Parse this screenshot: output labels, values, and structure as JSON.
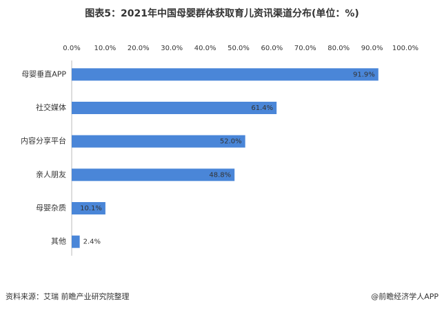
{
  "chart_data": {
    "type": "bar",
    "orientation": "horizontal",
    "title": "图表5：2021年中国母婴群体获取育儿资讯渠道分布(单位：%)",
    "categories": [
      "母婴垂直APP",
      "社交媒体",
      "内容分享平台",
      "亲人朋友",
      "母婴杂质",
      "其他"
    ],
    "values": [
      91.9,
      61.4,
      52.0,
      48.8,
      10.1,
      2.4
    ],
    "value_labels": [
      "91.9%",
      "61.4%",
      "52.0%",
      "48.8%",
      "10.1%",
      "2.4%"
    ],
    "color": "#4a86d8",
    "xlim": [
      0,
      100
    ],
    "xticks": [
      {
        "value": 0,
        "label": "0.0%"
      },
      {
        "value": 10,
        "label": "10.0%"
      },
      {
        "value": 20,
        "label": "20.0%"
      },
      {
        "value": 30,
        "label": "30.0%"
      },
      {
        "value": 40,
        "label": "40.0%"
      },
      {
        "value": 50,
        "label": "50.0%"
      },
      {
        "value": 60,
        "label": "60.0%"
      },
      {
        "value": 70,
        "label": "70.0%"
      },
      {
        "value": 80,
        "label": "80.0%"
      },
      {
        "value": 90,
        "label": "90.0%"
      },
      {
        "value": 100,
        "label": "100.0%"
      }
    ],
    "source": "资料来源：艾瑞 前瞻产业研究院整理",
    "credit": "@前瞻经济学人APP"
  }
}
